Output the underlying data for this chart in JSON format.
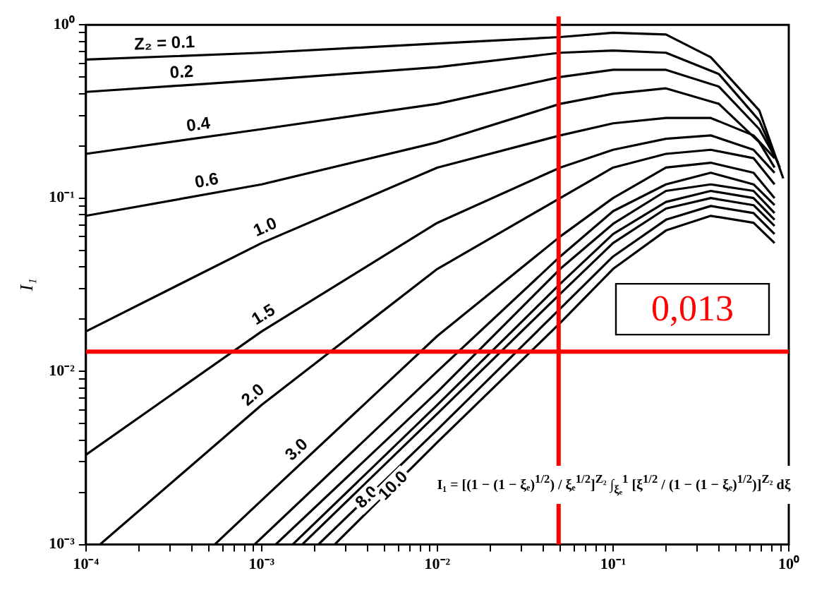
{
  "chart_data": {
    "type": "line",
    "ylabel": "I₁",
    "log": "xy",
    "grid": false,
    "legend": false,
    "xlim": [
      0.0001,
      1
    ],
    "ylim": [
      0.001,
      1
    ],
    "xticks": [
      {
        "value": 0.0001,
        "label": "10⁻⁴"
      },
      {
        "value": 0.0002,
        "label": null
      },
      {
        "value": 0.0003,
        "label": null
      },
      {
        "value": 0.0004,
        "label": null
      },
      {
        "value": 0.0005,
        "label": null
      },
      {
        "value": 0.0006,
        "label": null
      },
      {
        "value": 0.0007,
        "label": null
      },
      {
        "value": 0.0008,
        "label": null
      },
      {
        "value": 0.0009,
        "label": null
      },
      {
        "value": 0.001,
        "label": "10⁻³"
      },
      {
        "value": 0.002,
        "label": null
      },
      {
        "value": 0.003,
        "label": null
      },
      {
        "value": 0.004,
        "label": null
      },
      {
        "value": 0.005,
        "label": null
      },
      {
        "value": 0.006,
        "label": null
      },
      {
        "value": 0.007,
        "label": null
      },
      {
        "value": 0.008,
        "label": null
      },
      {
        "value": 0.009,
        "label": null
      },
      {
        "value": 0.01,
        "label": "10⁻²"
      },
      {
        "value": 0.02,
        "label": null
      },
      {
        "value": 0.03,
        "label": null
      },
      {
        "value": 0.04,
        "label": null
      },
      {
        "value": 0.05,
        "label": null
      },
      {
        "value": 0.06,
        "label": null
      },
      {
        "value": 0.07,
        "label": null
      },
      {
        "value": 0.08,
        "label": null
      },
      {
        "value": 0.09,
        "label": null
      },
      {
        "value": 0.1,
        "label": "10⁻¹"
      },
      {
        "value": 0.2,
        "label": null
      },
      {
        "value": 0.3,
        "label": null
      },
      {
        "value": 0.4,
        "label": null
      },
      {
        "value": 0.5,
        "label": null
      },
      {
        "value": 0.6,
        "label": null
      },
      {
        "value": 0.7,
        "label": null
      },
      {
        "value": 0.8,
        "label": null
      },
      {
        "value": 0.9,
        "label": null
      },
      {
        "value": 1,
        "label": "10⁰"
      }
    ],
    "yticks": [
      {
        "value": 0.001,
        "label": "10⁻³"
      },
      {
        "value": 0.002,
        "label": null
      },
      {
        "value": 0.003,
        "label": null
      },
      {
        "value": 0.004,
        "label": null
      },
      {
        "value": 0.005,
        "label": null
      },
      {
        "value": 0.006,
        "label": null
      },
      {
        "value": 0.007,
        "label": null
      },
      {
        "value": 0.008,
        "label": null
      },
      {
        "value": 0.009,
        "label": null
      },
      {
        "value": 0.01,
        "label": "10⁻²"
      },
      {
        "value": 0.02,
        "label": null
      },
      {
        "value": 0.03,
        "label": null
      },
      {
        "value": 0.04,
        "label": null
      },
      {
        "value": 0.05,
        "label": null
      },
      {
        "value": 0.06,
        "label": null
      },
      {
        "value": 0.07,
        "label": null
      },
      {
        "value": 0.08,
        "label": null
      },
      {
        "value": 0.09,
        "label": null
      },
      {
        "value": 0.1,
        "label": "10⁻¹"
      },
      {
        "value": 0.2,
        "label": null
      },
      {
        "value": 0.3,
        "label": null
      },
      {
        "value": 0.4,
        "label": null
      },
      {
        "value": 0.5,
        "label": null
      },
      {
        "value": 0.6,
        "label": null
      },
      {
        "value": 0.7,
        "label": null
      },
      {
        "value": 0.8,
        "label": null
      },
      {
        "value": 0.9,
        "label": null
      },
      {
        "value": 1,
        "label": "10⁰"
      }
    ],
    "series": [
      {
        "name": "Z₂ = 0.1",
        "color": "#000000",
        "x": [
          0.0001,
          0.001,
          0.01,
          0.05,
          0.1,
          0.2,
          0.36,
          0.68,
          0.93
        ],
        "values": [
          0.63,
          0.69,
          0.78,
          0.85,
          0.9,
          0.88,
          0.65,
          0.32,
          0.13
        ]
      },
      {
        "name": "0.2",
        "color": "#000000",
        "x": [
          0.0001,
          0.001,
          0.01,
          0.05,
          0.1,
          0.2,
          0.4,
          0.68,
          0.89
        ],
        "values": [
          0.41,
          0.48,
          0.57,
          0.69,
          0.71,
          0.69,
          0.52,
          0.28,
          0.15
        ]
      },
      {
        "name": "0.4",
        "color": "#000000",
        "x": [
          0.0001,
          0.001,
          0.01,
          0.05,
          0.1,
          0.2,
          0.4,
          0.68,
          0.87
        ],
        "values": [
          0.18,
          0.25,
          0.35,
          0.5,
          0.55,
          0.55,
          0.44,
          0.25,
          0.16
        ]
      },
      {
        "name": "0.6",
        "color": "#000000",
        "x": [
          0.0001,
          0.001,
          0.01,
          0.05,
          0.1,
          0.2,
          0.4,
          0.68,
          0.83
        ],
        "values": [
          0.079,
          0.12,
          0.21,
          0.35,
          0.4,
          0.43,
          0.35,
          0.21,
          0.15
        ]
      },
      {
        "name": "1.0",
        "color": "#000000",
        "x": [
          0.0001,
          0.001,
          0.01,
          0.05,
          0.1,
          0.2,
          0.36,
          0.63,
          0.83
        ],
        "values": [
          0.017,
          0.055,
          0.15,
          0.23,
          0.27,
          0.29,
          0.29,
          0.23,
          0.17
        ]
      },
      {
        "name": "1.5",
        "color": "#000000",
        "x": [
          0.0001,
          0.001,
          0.01,
          0.05,
          0.1,
          0.2,
          0.36,
          0.63,
          0.83
        ],
        "values": [
          0.0033,
          0.017,
          0.072,
          0.15,
          0.19,
          0.22,
          0.23,
          0.19,
          0.14
        ]
      },
      {
        "name": "2.0",
        "color": "#000000",
        "x": [
          0.00012,
          0.001,
          0.01,
          0.05,
          0.1,
          0.2,
          0.36,
          0.63,
          0.83
        ],
        "values": [
          0.001,
          0.0064,
          0.039,
          0.1,
          0.15,
          0.18,
          0.19,
          0.17,
          0.12
        ]
      },
      {
        "name": "3.0",
        "color": "#000000",
        "x": [
          0.00054,
          0.001,
          0.01,
          0.05,
          0.1,
          0.2,
          0.36,
          0.63,
          0.83
        ],
        "values": [
          0.001,
          0.0018,
          0.016,
          0.06,
          0.1,
          0.15,
          0.16,
          0.14,
          0.1
        ]
      },
      {
        "color": "#000000",
        "x": [
          0.00091,
          0.01,
          0.05,
          0.1,
          0.2,
          0.36,
          0.63,
          0.83
        ],
        "values": [
          0.001,
          0.01,
          0.046,
          0.084,
          0.12,
          0.14,
          0.12,
          0.091
        ]
      },
      {
        "color": "#000000",
        "x": [
          0.0012,
          0.01,
          0.05,
          0.1,
          0.2,
          0.36,
          0.63,
          0.83
        ],
        "values": [
          0.001,
          0.0076,
          0.039,
          0.071,
          0.11,
          0.12,
          0.11,
          0.082
        ]
      },
      {
        "color": "#000000",
        "x": [
          0.0015,
          0.01,
          0.05,
          0.1,
          0.2,
          0.36,
          0.63,
          0.83
        ],
        "values": [
          0.001,
          0.0064,
          0.032,
          0.062,
          0.095,
          0.11,
          0.1,
          0.075
        ]
      },
      {
        "color": "#000000",
        "x": [
          0.0017,
          0.01,
          0.05,
          0.1,
          0.2,
          0.36,
          0.63,
          0.83
        ],
        "values": [
          0.001,
          0.0057,
          0.028,
          0.055,
          0.087,
          0.1,
          0.091,
          0.069
        ]
      },
      {
        "name": "8.0",
        "color": "#000000",
        "x": [
          0.0021,
          0.01,
          0.05,
          0.1,
          0.2,
          0.36,
          0.63,
          0.83
        ],
        "values": [
          0.001,
          0.0046,
          0.023,
          0.046,
          0.075,
          0.09,
          0.082,
          0.062
        ]
      },
      {
        "name": "10.0",
        "color": "#000000",
        "x": [
          0.0026,
          0.01,
          0.05,
          0.1,
          0.2,
          0.36,
          0.63,
          0.83
        ],
        "values": [
          0.001,
          0.0039,
          0.019,
          0.039,
          0.065,
          0.079,
          0.072,
          0.055
        ]
      }
    ],
    "ref_lines": [
      {
        "axis": "x",
        "value": 0.049,
        "color": "#ff0000"
      },
      {
        "axis": "y",
        "value": 0.013,
        "label": "0,013",
        "color": "#ff0000"
      }
    ],
    "annotations": [
      "I₁ = [(1 − (1 − ξₑ)$^{1/2}$) / ξₑ$^{1/2}$]$^{Z₂}$ ∫$_{ξₑ}$$^{1}$ [ξ$^{1/2}$ / (1 − (1 − ξₑ)$^{1/2}$)]$^{Z₂}$ dξ"
    ]
  }
}
